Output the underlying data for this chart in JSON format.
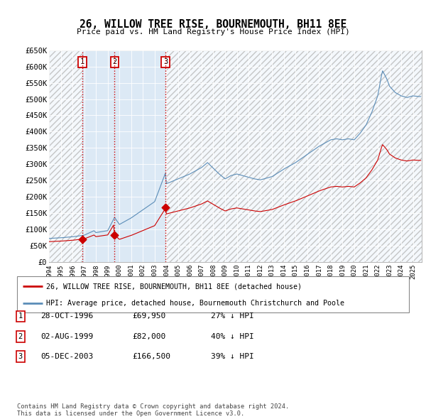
{
  "title": "26, WILLOW TREE RISE, BOURNEMOUTH, BH11 8EE",
  "subtitle": "Price paid vs. HM Land Registry's House Price Index (HPI)",
  "xlim": [
    1994.0,
    2025.75
  ],
  "ylim": [
    0,
    650000
  ],
  "yticks": [
    0,
    50000,
    100000,
    150000,
    200000,
    250000,
    300000,
    350000,
    400000,
    450000,
    500000,
    550000,
    600000,
    650000
  ],
  "ytick_labels": [
    "£0",
    "£50K",
    "£100K",
    "£150K",
    "£200K",
    "£250K",
    "£300K",
    "£350K",
    "£400K",
    "£450K",
    "£500K",
    "£550K",
    "£600K",
    "£650K"
  ],
  "xticks": [
    1994,
    1995,
    1996,
    1997,
    1998,
    1999,
    2000,
    2001,
    2002,
    2003,
    2004,
    2005,
    2006,
    2007,
    2008,
    2009,
    2010,
    2011,
    2012,
    2013,
    2014,
    2015,
    2016,
    2017,
    2018,
    2019,
    2020,
    2021,
    2022,
    2023,
    2024,
    2025
  ],
  "sale_dates": [
    1996.83,
    1999.58,
    2003.92
  ],
  "sale_prices": [
    69950,
    82000,
    166500
  ],
  "sale_labels": [
    "1",
    "2",
    "3"
  ],
  "red_line_color": "#cc0000",
  "blue_line_color": "#5b8db8",
  "plot_bg_color": "#dce9f5",
  "hatch_color": "#b0b0b0",
  "grid_color": "#ffffff",
  "bg_color": "#ffffff",
  "legend_label_red": "26, WILLOW TREE RISE, BOURNEMOUTH, BH11 8EE (detached house)",
  "legend_label_blue": "HPI: Average price, detached house, Bournemouth Christchurch and Poole",
  "table_rows": [
    [
      "1",
      "28-OCT-1996",
      "£69,950",
      "27% ↓ HPI"
    ],
    [
      "2",
      "02-AUG-1999",
      "£82,000",
      "40% ↓ HPI"
    ],
    [
      "3",
      "05-DEC-2003",
      "£166,500",
      "39% ↓ HPI"
    ]
  ],
  "footer": "Contains HM Land Registry data © Crown copyright and database right 2024.\nThis data is licensed under the Open Government Licence v3.0."
}
